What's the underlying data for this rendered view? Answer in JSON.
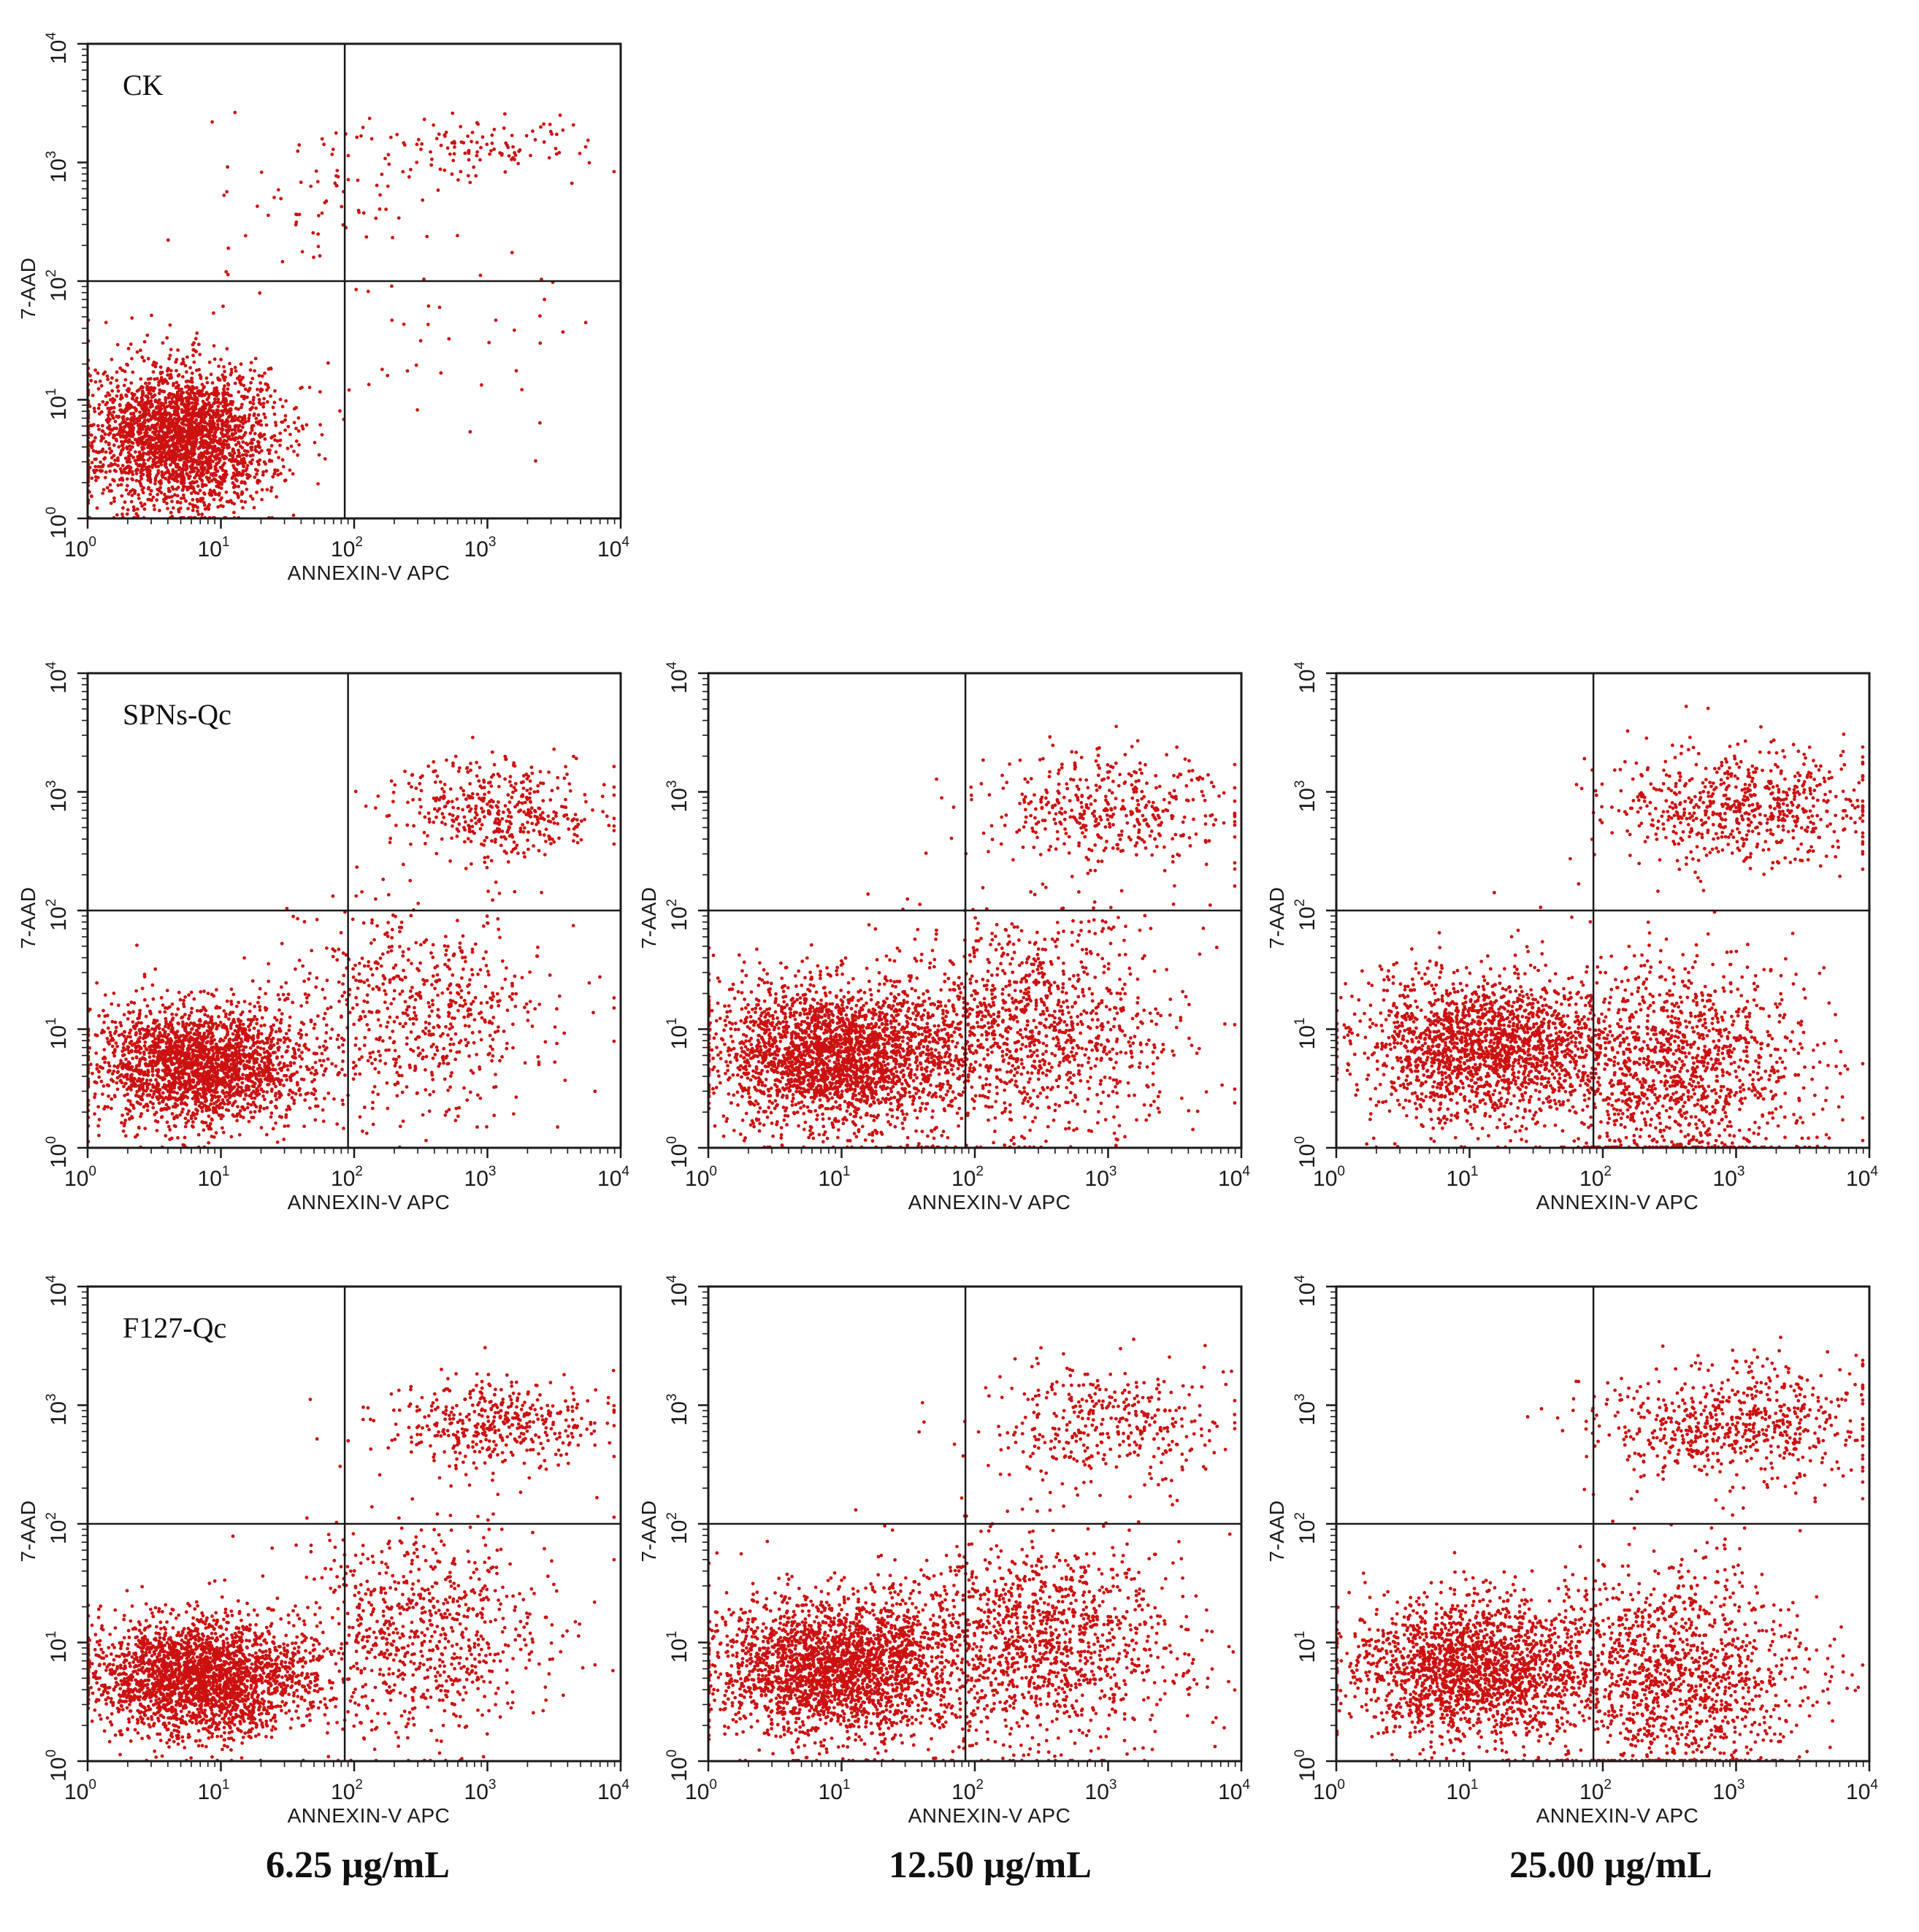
{
  "figure": {
    "background": "#ffffff",
    "point_color": "#cc1111",
    "frame_color": "#1a1a1a"
  },
  "concentrations": [
    "6.25 μg/mL",
    "12.50 μg/mL",
    "25.00 μg/mL"
  ],
  "chart_data": [
    {
      "id": "ck",
      "type": "scatter",
      "panel_label": "CK",
      "xlabel": "ANNEXIN-V APC",
      "ylabel": "7-AAD",
      "x_scale": "log10",
      "y_scale": "log10",
      "xlim": [
        1,
        10000
      ],
      "ylim": [
        1,
        10000
      ],
      "x_ticks": [
        "10^0",
        "10^1",
        "10^2",
        "10^3",
        "10^4"
      ],
      "y_ticks": [
        "10^0",
        "10^1",
        "10^2",
        "10^3",
        "10^4"
      ],
      "quadrant_gate": [
        85,
        100
      ],
      "clusters": [
        {
          "name": "viable",
          "center": [
            5,
            5
          ],
          "spread_decades": [
            0.35,
            0.3
          ],
          "count": 2600
        },
        {
          "name": "late-apoptotic",
          "center": [
            900,
            1300
          ],
          "spread_decades": [
            0.45,
            0.15
          ],
          "count": 120
        },
        {
          "name": "transition",
          "center": [
            60,
            400
          ],
          "spread_decades": [
            0.45,
            0.35
          ],
          "count": 80
        },
        {
          "name": "early-apoptotic",
          "center": [
            600,
            30
          ],
          "spread_decades": [
            0.5,
            0.5
          ],
          "count": 35
        }
      ],
      "row": 0,
      "col": 0
    },
    {
      "id": "spns-6.25",
      "type": "scatter",
      "panel_label": "SPNs-Qc",
      "xlabel": "ANNEXIN-V APC",
      "ylabel": "7-AAD",
      "x_scale": "log10",
      "y_scale": "log10",
      "xlim": [
        1,
        10000
      ],
      "ylim": [
        1,
        10000
      ],
      "x_ticks": [
        "10^0",
        "10^1",
        "10^2",
        "10^3",
        "10^4"
      ],
      "y_ticks": [
        "10^0",
        "10^1",
        "10^2",
        "10^3",
        "10^4"
      ],
      "quadrant_gate": [
        90,
        100
      ],
      "clusters": [
        {
          "name": "viable",
          "center": [
            7,
            5
          ],
          "spread_decades": [
            0.4,
            0.25
          ],
          "count": 2300
        },
        {
          "name": "late-apoptotic",
          "center": [
            1200,
            700
          ],
          "spread_decades": [
            0.4,
            0.2
          ],
          "count": 420
        },
        {
          "name": "early-apoptotic",
          "center": [
            300,
            15
          ],
          "spread_decades": [
            0.5,
            0.45
          ],
          "count": 650
        }
      ],
      "row": 1,
      "col": 0
    },
    {
      "id": "spns-12.50",
      "type": "scatter",
      "panel_label": "",
      "xlabel": "ANNEXIN-V APC",
      "ylabel": "7-AAD",
      "x_scale": "log10",
      "y_scale": "log10",
      "xlim": [
        1,
        10000
      ],
      "ylim": [
        1,
        10000
      ],
      "x_ticks": [
        "10^0",
        "10^1",
        "10^2",
        "10^3",
        "10^4"
      ],
      "y_ticks": [
        "10^0",
        "10^1",
        "10^2",
        "10^3",
        "10^4"
      ],
      "quadrant_gate": [
        85,
        100
      ],
      "clusters": [
        {
          "name": "viable",
          "center": [
            9,
            6
          ],
          "spread_decades": [
            0.45,
            0.3
          ],
          "count": 2500
        },
        {
          "name": "late-apoptotic",
          "center": [
            1000,
            700
          ],
          "spread_decades": [
            0.45,
            0.25
          ],
          "count": 420
        },
        {
          "name": "early-apoptotic",
          "center": [
            250,
            10
          ],
          "spread_decades": [
            0.55,
            0.45
          ],
          "count": 1200
        }
      ],
      "row": 1,
      "col": 1
    },
    {
      "id": "spns-25.00",
      "type": "scatter",
      "panel_label": "",
      "xlabel": "ANNEXIN-V APC",
      "ylabel": "7-AAD",
      "x_scale": "log10",
      "y_scale": "log10",
      "xlim": [
        1,
        10000
      ],
      "ylim": [
        1,
        10000
      ],
      "x_ticks": [
        "10^0",
        "10^1",
        "10^2",
        "10^3",
        "10^4"
      ],
      "y_ticks": [
        "10^0",
        "10^1",
        "10^2",
        "10^3",
        "10^4"
      ],
      "quadrant_gate": [
        85,
        100
      ],
      "clusters": [
        {
          "name": "viable",
          "center": [
            12,
            7
          ],
          "spread_decades": [
            0.45,
            0.3
          ],
          "count": 1800
        },
        {
          "name": "late-apoptotic",
          "center": [
            1100,
            750
          ],
          "spread_decades": [
            0.5,
            0.25
          ],
          "count": 650
        },
        {
          "name": "early-apoptotic",
          "center": [
            350,
            5
          ],
          "spread_decades": [
            0.5,
            0.45
          ],
          "count": 1300
        }
      ],
      "row": 1,
      "col": 2
    },
    {
      "id": "f127-6.25",
      "type": "scatter",
      "panel_label": "F127-Qc",
      "xlabel": "ANNEXIN-V APC",
      "ylabel": "7-AAD",
      "x_scale": "log10",
      "y_scale": "log10",
      "xlim": [
        1,
        10000
      ],
      "ylim": [
        1,
        10000
      ],
      "x_ticks": [
        "10^0",
        "10^1",
        "10^2",
        "10^3",
        "10^4"
      ],
      "y_ticks": [
        "10^0",
        "10^1",
        "10^2",
        "10^3",
        "10^4"
      ],
      "quadrant_gate": [
        85,
        100
      ],
      "clusters": [
        {
          "name": "viable",
          "center": [
            7,
            5
          ],
          "spread_decades": [
            0.4,
            0.25
          ],
          "count": 2500
        },
        {
          "name": "late-apoptotic",
          "center": [
            1200,
            700
          ],
          "spread_decades": [
            0.4,
            0.2
          ],
          "count": 430
        },
        {
          "name": "early-apoptotic",
          "center": [
            350,
            12
          ],
          "spread_decades": [
            0.5,
            0.45
          ],
          "count": 800
        }
      ],
      "row": 2,
      "col": 0
    },
    {
      "id": "f127-12.50",
      "type": "scatter",
      "panel_label": "",
      "xlabel": "ANNEXIN-V APC",
      "ylabel": "7-AAD",
      "x_scale": "log10",
      "y_scale": "log10",
      "xlim": [
        1,
        10000
      ],
      "ylim": [
        1,
        10000
      ],
      "x_ticks": [
        "10^0",
        "10^1",
        "10^2",
        "10^3",
        "10^4"
      ],
      "y_ticks": [
        "10^0",
        "10^1",
        "10^2",
        "10^3",
        "10^4"
      ],
      "quadrant_gate": [
        85,
        100
      ],
      "clusters": [
        {
          "name": "viable",
          "center": [
            9,
            6
          ],
          "spread_decades": [
            0.45,
            0.3
          ],
          "count": 2400
        },
        {
          "name": "late-apoptotic",
          "center": [
            1000,
            700
          ],
          "spread_decades": [
            0.45,
            0.25
          ],
          "count": 380
        },
        {
          "name": "early-apoptotic",
          "center": [
            300,
            10
          ],
          "spread_decades": [
            0.55,
            0.45
          ],
          "count": 1300
        }
      ],
      "row": 2,
      "col": 1
    },
    {
      "id": "f127-25.00",
      "type": "scatter",
      "panel_label": "",
      "xlabel": "ANNEXIN-V APC",
      "ylabel": "7-AAD",
      "x_scale": "log10",
      "y_scale": "log10",
      "xlim": [
        1,
        10000
      ],
      "ylim": [
        1,
        10000
      ],
      "x_ticks": [
        "10^0",
        "10^1",
        "10^2",
        "10^3",
        "10^4"
      ],
      "y_ticks": [
        "10^0",
        "10^1",
        "10^2",
        "10^3",
        "10^4"
      ],
      "quadrant_gate": [
        85,
        100
      ],
      "clusters": [
        {
          "name": "viable",
          "center": [
            10,
            6
          ],
          "spread_decades": [
            0.45,
            0.3
          ],
          "count": 1900
        },
        {
          "name": "late-apoptotic",
          "center": [
            1000,
            700
          ],
          "spread_decades": [
            0.5,
            0.25
          ],
          "count": 650
        },
        {
          "name": "early-apoptotic",
          "center": [
            350,
            5
          ],
          "spread_decades": [
            0.5,
            0.45
          ],
          "count": 1300
        }
      ],
      "row": 2,
      "col": 2
    }
  ]
}
